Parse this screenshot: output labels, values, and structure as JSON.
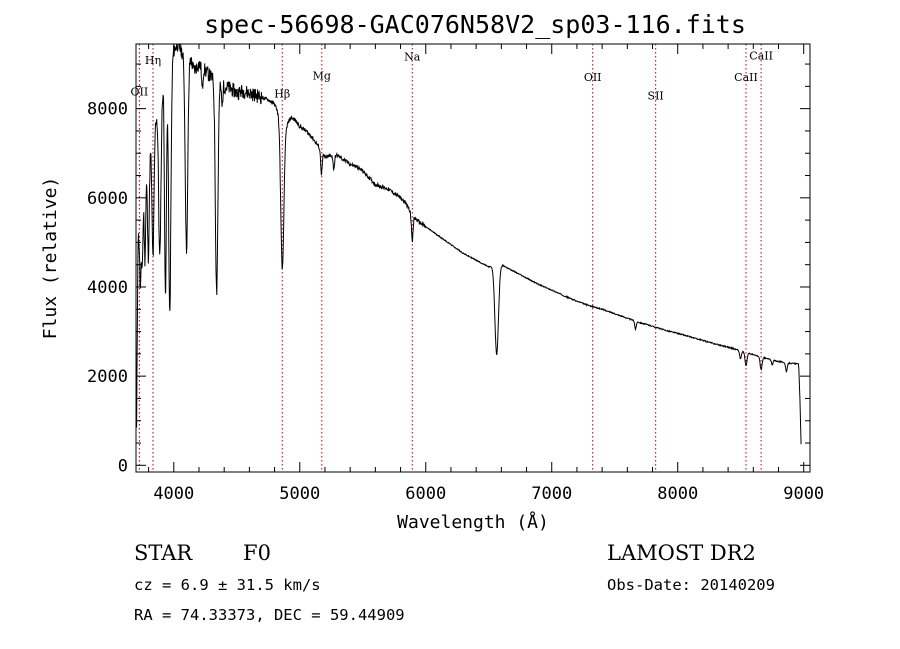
{
  "chart_data": {
    "type": "line",
    "title": "spec-56698-GAC076N58V2_sp03-116.fits",
    "xlabel": "Wavelength (Å)",
    "ylabel": "Flux (relative)",
    "xlim": [
      3700,
      9050
    ],
    "ylim": [
      -150,
      9450
    ],
    "x_ticks": [
      4000,
      5000,
      6000,
      7000,
      8000,
      9000
    ],
    "y_ticks": [
      0,
      2000,
      4000,
      6000,
      8000
    ],
    "continuum": [
      [
        3705,
        800
      ],
      [
        3715,
        5000
      ],
      [
        3740,
        6000
      ],
      [
        3770,
        6600
      ],
      [
        3800,
        7000
      ],
      [
        3830,
        7400
      ],
      [
        3860,
        7800
      ],
      [
        3880,
        8000
      ],
      [
        3900,
        8350
      ],
      [
        3930,
        8650
      ],
      [
        3960,
        8900
      ],
      [
        4000,
        9300
      ],
      [
        4030,
        9450
      ],
      [
        4060,
        9300
      ],
      [
        4100,
        9050
      ],
      [
        4130,
        9150
      ],
      [
        4160,
        8850
      ],
      [
        4200,
        9000
      ],
      [
        4250,
        8850
      ],
      [
        4300,
        8700
      ],
      [
        4350,
        8600
      ],
      [
        4400,
        8500
      ],
      [
        4450,
        8450
      ],
      [
        4500,
        8350
      ],
      [
        4550,
        8400
      ],
      [
        4600,
        8350
      ],
      [
        4650,
        8300
      ],
      [
        4700,
        8250
      ],
      [
        4750,
        8200
      ],
      [
        4800,
        8100
      ],
      [
        4860,
        7700
      ],
      [
        4880,
        7500
      ],
      [
        4900,
        7650
      ],
      [
        4930,
        7800
      ],
      [
        4960,
        7750
      ],
      [
        5000,
        7600
      ],
      [
        5050,
        7500
      ],
      [
        5100,
        7350
      ],
      [
        5150,
        7150
      ],
      [
        5200,
        6900
      ],
      [
        5250,
        6950
      ],
      [
        5300,
        6950
      ],
      [
        5350,
        6850
      ],
      [
        5400,
        6750
      ],
      [
        5450,
        6700
      ],
      [
        5500,
        6600
      ],
      [
        5550,
        6450
      ],
      [
        5600,
        6300
      ],
      [
        5650,
        6250
      ],
      [
        5700,
        6200
      ],
      [
        5750,
        6100
      ],
      [
        5800,
        6000
      ],
      [
        5850,
        5850
      ],
      [
        5893,
        5600
      ],
      [
        5950,
        5450
      ],
      [
        6000,
        5350
      ],
      [
        6100,
        5150
      ],
      [
        6200,
        4950
      ],
      [
        6300,
        4750
      ],
      [
        6400,
        4600
      ],
      [
        6500,
        4450
      ],
      [
        6600,
        4500
      ],
      [
        6700,
        4350
      ],
      [
        6800,
        4200
      ],
      [
        6900,
        4050
      ],
      [
        7000,
        3930
      ],
      [
        7100,
        3800
      ],
      [
        7200,
        3680
      ],
      [
        7300,
        3580
      ],
      [
        7400,
        3500
      ],
      [
        7500,
        3400
      ],
      [
        7600,
        3300
      ],
      [
        7700,
        3200
      ],
      [
        7800,
        3120
      ],
      [
        7900,
        3030
      ],
      [
        8000,
        2960
      ],
      [
        8100,
        2880
      ],
      [
        8200,
        2800
      ],
      [
        8300,
        2720
      ],
      [
        8400,
        2650
      ],
      [
        8500,
        2570
      ],
      [
        8600,
        2480
      ],
      [
        8700,
        2400
      ],
      [
        8800,
        2330
      ],
      [
        8900,
        2290
      ],
      [
        8960,
        2270
      ],
      [
        8970,
        1500
      ],
      [
        8980,
        350
      ]
    ],
    "absorption": [
      {
        "center": 3735,
        "depth": 1800,
        "width": 6
      },
      {
        "center": 3750,
        "depth": 1600,
        "width": 6
      },
      {
        "center": 3771,
        "depth": 2000,
        "width": 6
      },
      {
        "center": 3798,
        "depth": 2300,
        "width": 7
      },
      {
        "center": 3835,
        "depth": 2800,
        "width": 8
      },
      {
        "center": 3889,
        "depth": 3500,
        "width": 9
      },
      {
        "center": 3934,
        "depth": 5000,
        "width": 7
      },
      {
        "center": 3968,
        "depth": 5600,
        "width": 9
      },
      {
        "center": 4101,
        "depth": 4200,
        "width": 10
      },
      {
        "center": 4226,
        "depth": 500,
        "width": 5
      },
      {
        "center": 4340,
        "depth": 4700,
        "width": 10
      },
      {
        "center": 4383,
        "depth": 500,
        "width": 5
      },
      {
        "center": 4861,
        "depth": 3300,
        "width": 12
      },
      {
        "center": 5172,
        "depth": 500,
        "width": 6
      },
      {
        "center": 5270,
        "depth": 300,
        "width": 6
      },
      {
        "center": 5893,
        "depth": 600,
        "width": 6
      },
      {
        "center": 6563,
        "depth": 2000,
        "width": 14
      },
      {
        "center": 7665,
        "depth": 180,
        "width": 6
      },
      {
        "center": 8498,
        "depth": 180,
        "width": 7
      },
      {
        "center": 8542,
        "depth": 300,
        "width": 8
      },
      {
        "center": 8662,
        "depth": 280,
        "width": 8
      },
      {
        "center": 8750,
        "depth": 120,
        "width": 6
      },
      {
        "center": 8863,
        "depth": 200,
        "width": 7
      }
    ],
    "lines": [
      {
        "label": "OII",
        "wavelength": 3727,
        "label_flux": 8300
      },
      {
        "label": "Hη",
        "wavelength": 3835,
        "label_flux": 9000
      },
      {
        "label": "Hβ",
        "wavelength": 4861,
        "label_flux": 8250
      },
      {
        "label": "Mg",
        "wavelength": 5175,
        "label_flux": 8650
      },
      {
        "label": "Na",
        "wavelength": 5893,
        "label_flux": 9080
      },
      {
        "label": "OII",
        "wavelength": 7325,
        "label_flux": 8620
      },
      {
        "label": "SII",
        "wavelength": 7825,
        "label_flux": 8200
      },
      {
        "label": "CaII",
        "wavelength": 8542,
        "label_flux": 8620
      },
      {
        "label": "CaII",
        "wavelength": 8662,
        "label_flux": 9100
      }
    ]
  },
  "info": {
    "object_class": "STAR",
    "subclass": "F0",
    "survey": "LAMOST DR2",
    "cz": "cz = 6.9 ± 31.5 km/s",
    "obs_date": "Obs-Date: 20140209",
    "coords": "RA =  74.33373, DEC =  59.44909"
  },
  "colors": {
    "spectrum": "#000000",
    "line_marker": "#c00000",
    "axes": "#000000",
    "background": "#ffffff"
  }
}
